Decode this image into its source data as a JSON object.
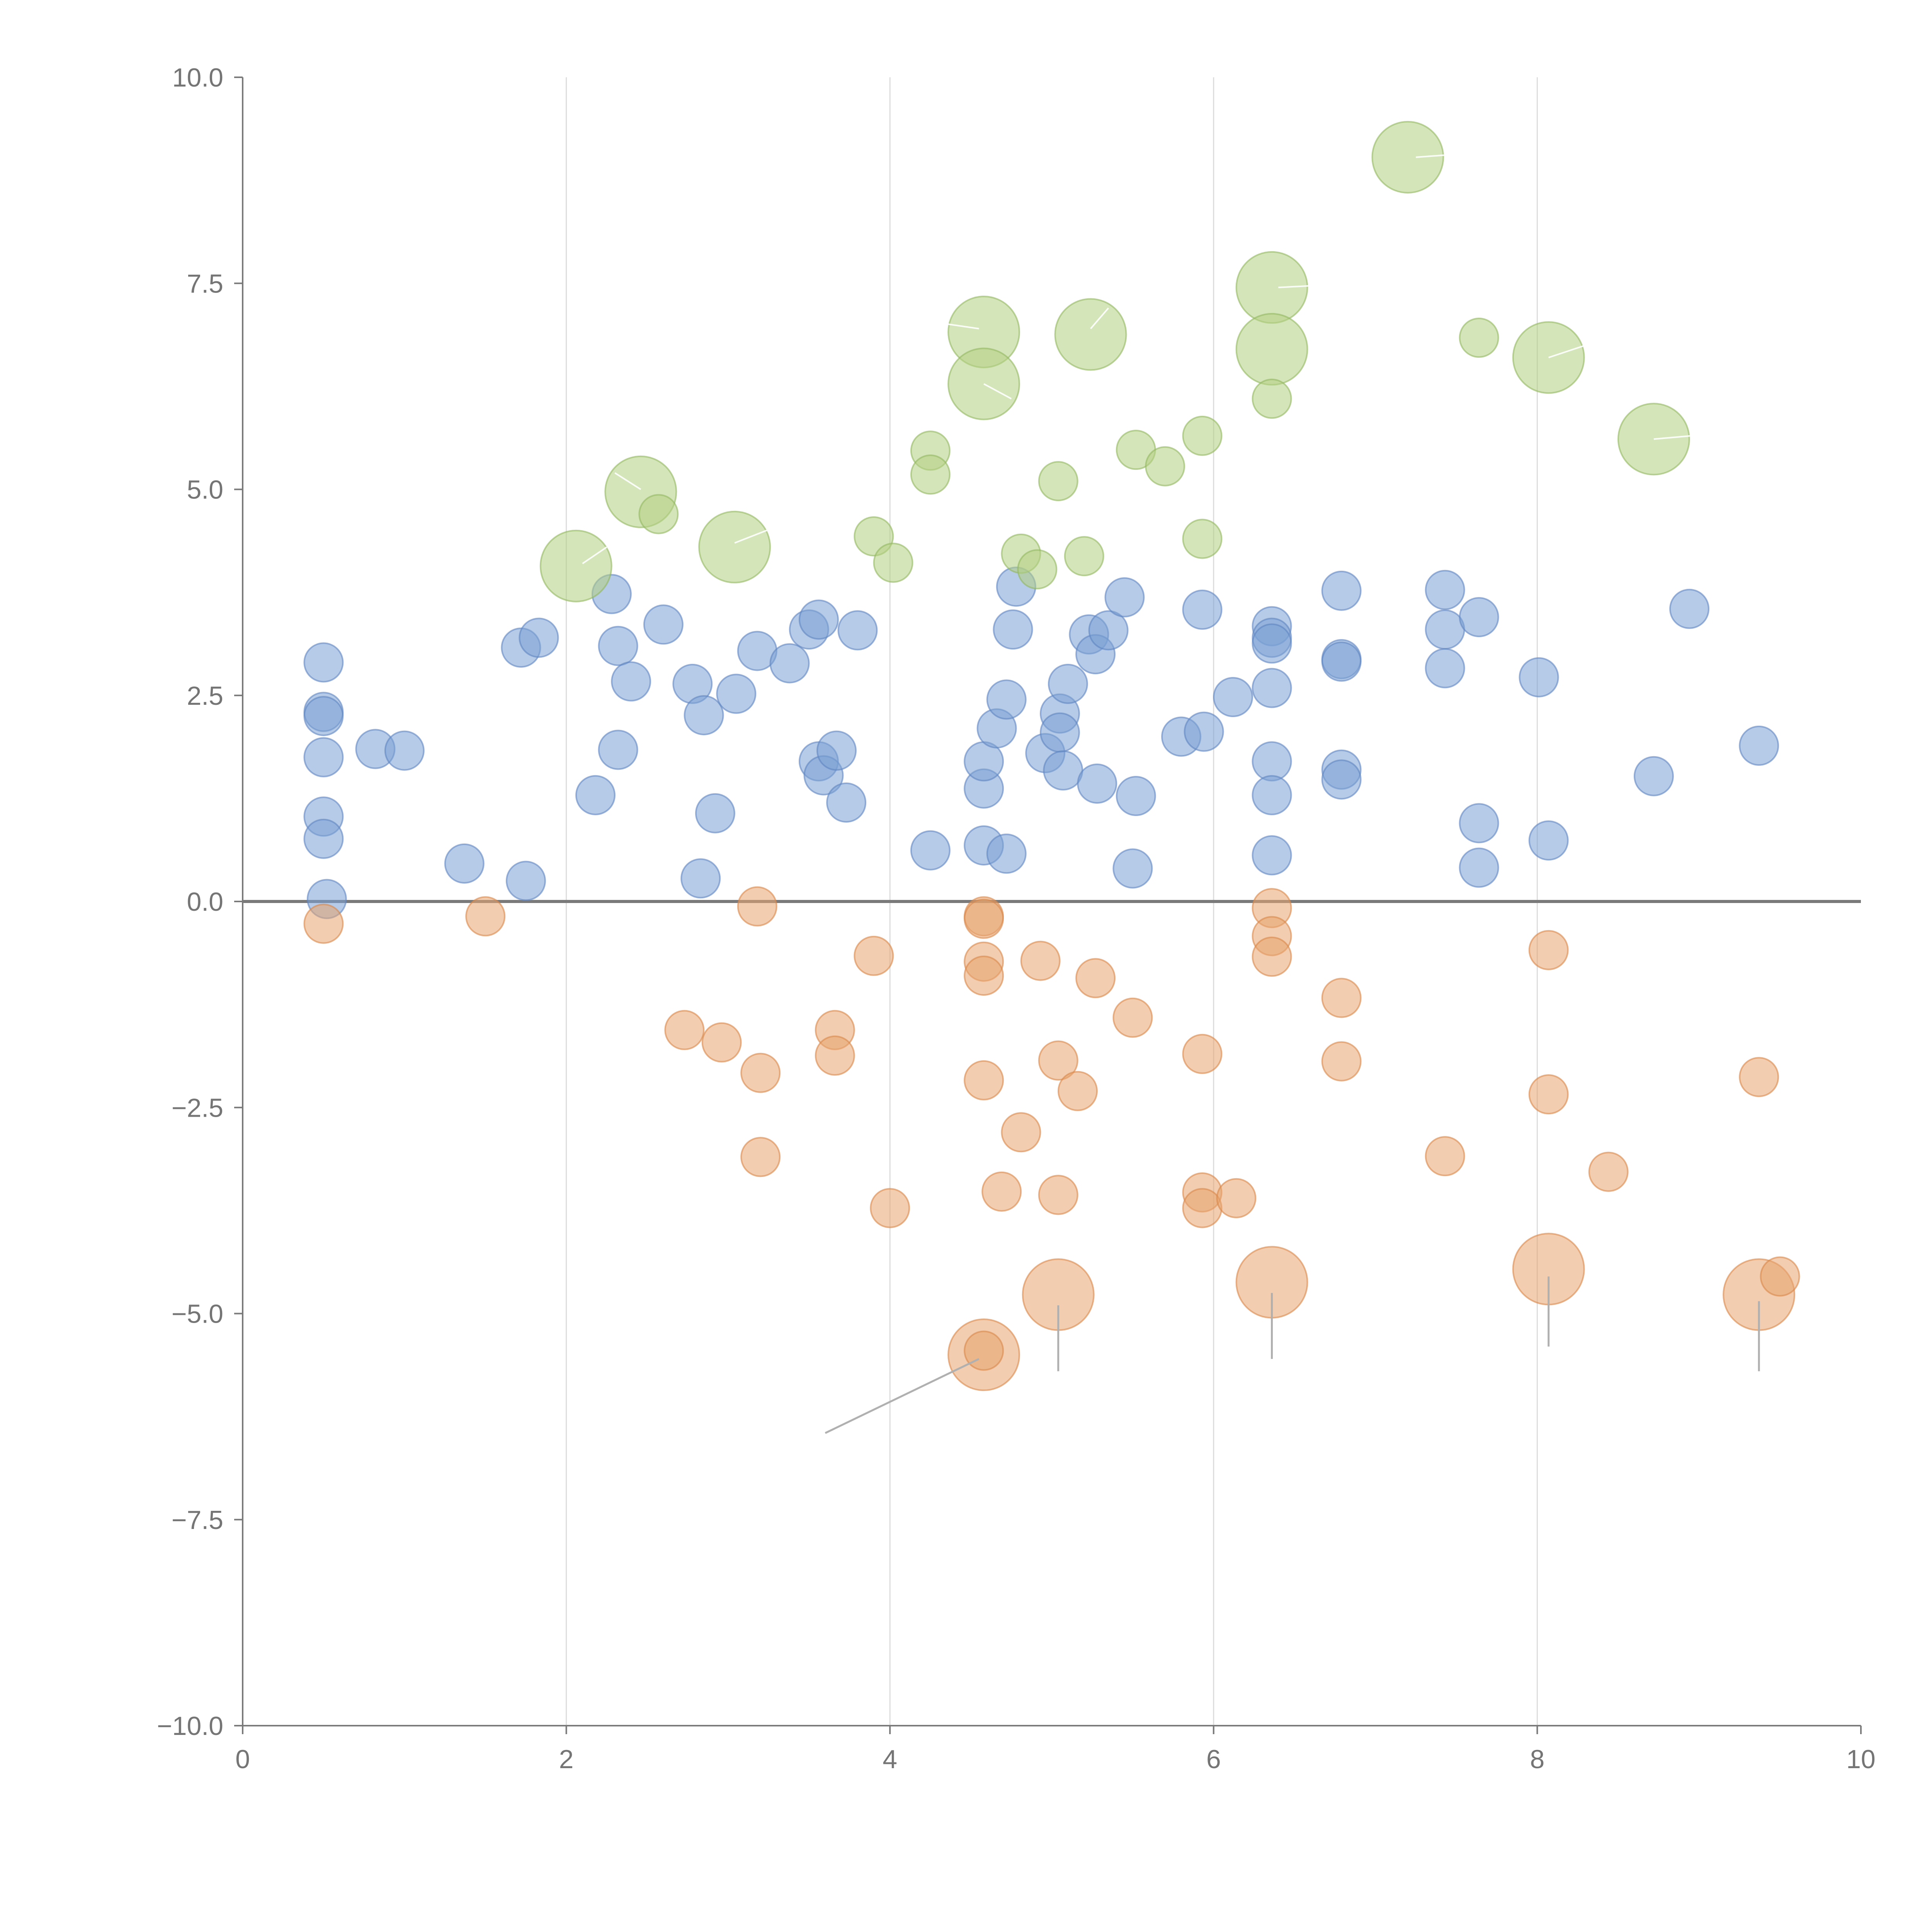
{
  "chart_data": {
    "type": "scatter",
    "subtype": "bubble",
    "title": "",
    "xlabel": "",
    "ylabel": "",
    "xlim": [
      0,
      10
    ],
    "ylim": [
      -10,
      10
    ],
    "grid": "vertical-major",
    "x_ticks": [
      "0",
      "2",
      "4",
      "6",
      "8",
      "10"
    ],
    "y_ticks": [
      "−10.0",
      "−7.5",
      "−5.0",
      "−2.5",
      "0.0",
      "2.5",
      "5.0",
      "7.5",
      "10.0"
    ],
    "x_tick_values": [
      0,
      2,
      4,
      6,
      8,
      10
    ],
    "y_tick_values": [
      -10,
      -7.5,
      -5,
      -2.5,
      0,
      2.5,
      5,
      7.5,
      10
    ],
    "reference_line_y": 0,
    "colors": {
      "blue_fill": "#7aa0d4",
      "blue_stroke": "#5f86c2",
      "orange_fill": "#e8a46e",
      "orange_stroke": "#d9874a",
      "green_fill": "#b3cf82",
      "green_stroke": "#93b861",
      "axis": "#7a7a7a",
      "grid": "#dcdcdc"
    },
    "size_scale_note": "small bubbles size 1, large bubbles size 3",
    "series": [
      {
        "name": "blue",
        "color": "#7aa0d4",
        "points": [
          {
            "x": 0.5,
            "y": 2.9,
            "s": 1
          },
          {
            "x": 0.5,
            "y": 2.3,
            "s": 1
          },
          {
            "x": 0.5,
            "y": 2.25,
            "s": 1
          },
          {
            "x": 0.5,
            "y": 1.75,
            "s": 1
          },
          {
            "x": 0.5,
            "y": 1.03,
            "s": 1
          },
          {
            "x": 0.5,
            "y": 0.76,
            "s": 1
          },
          {
            "x": 0.52,
            "y": 0.03,
            "s": 1
          },
          {
            "x": 0.82,
            "y": 1.85,
            "s": 1
          },
          {
            "x": 1.0,
            "y": 1.83,
            "s": 1
          },
          {
            "x": 1.37,
            "y": 0.46,
            "s": 1
          },
          {
            "x": 1.75,
            "y": 0.25,
            "s": 1
          },
          {
            "x": 1.72,
            "y": 3.08,
            "s": 1
          },
          {
            "x": 1.83,
            "y": 3.2,
            "s": 1
          },
          {
            "x": 2.18,
            "y": 1.29,
            "s": 1
          },
          {
            "x": 2.28,
            "y": 3.73,
            "s": 1
          },
          {
            "x": 2.32,
            "y": 3.1,
            "s": 1
          },
          {
            "x": 2.32,
            "y": 1.84,
            "s": 1
          },
          {
            "x": 2.4,
            "y": 2.67,
            "s": 1
          },
          {
            "x": 2.6,
            "y": 3.36,
            "s": 1
          },
          {
            "x": 2.78,
            "y": 2.64,
            "s": 1
          },
          {
            "x": 2.85,
            "y": 2.26,
            "s": 1
          },
          {
            "x": 2.83,
            "y": 0.28,
            "s": 1
          },
          {
            "x": 2.92,
            "y": 1.07,
            "s": 1
          },
          {
            "x": 3.05,
            "y": 2.52,
            "s": 1
          },
          {
            "x": 3.18,
            "y": 3.04,
            "s": 1
          },
          {
            "x": 3.38,
            "y": 2.89,
            "s": 1
          },
          {
            "x": 3.5,
            "y": 3.3,
            "s": 1
          },
          {
            "x": 3.56,
            "y": 3.42,
            "s": 1
          },
          {
            "x": 3.56,
            "y": 1.7,
            "s": 1
          },
          {
            "x": 3.59,
            "y": 1.53,
            "s": 1
          },
          {
            "x": 3.67,
            "y": 1.83,
            "s": 1
          },
          {
            "x": 3.73,
            "y": 1.2,
            "s": 1
          },
          {
            "x": 3.8,
            "y": 3.29,
            "s": 1
          },
          {
            "x": 4.25,
            "y": 0.62,
            "s": 1
          },
          {
            "x": 4.58,
            "y": 0.68,
            "s": 1
          },
          {
            "x": 4.58,
            "y": 1.37,
            "s": 1
          },
          {
            "x": 4.58,
            "y": 1.7,
            "s": 1
          },
          {
            "x": 4.66,
            "y": 2.1,
            "s": 1
          },
          {
            "x": 4.72,
            "y": 0.58,
            "s": 1
          },
          {
            "x": 4.72,
            "y": 2.45,
            "s": 1
          },
          {
            "x": 4.76,
            "y": 3.3,
            "s": 1
          },
          {
            "x": 4.78,
            "y": 3.82,
            "s": 1
          },
          {
            "x": 4.96,
            "y": 1.8,
            "s": 1
          },
          {
            "x": 5.05,
            "y": 2.28,
            "s": 1
          },
          {
            "x": 5.05,
            "y": 2.05,
            "s": 1
          },
          {
            "x": 5.07,
            "y": 1.59,
            "s": 1
          },
          {
            "x": 5.1,
            "y": 2.64,
            "s": 1
          },
          {
            "x": 5.23,
            "y": 3.24,
            "s": 1
          },
          {
            "x": 5.27,
            "y": 3.0,
            "s": 1
          },
          {
            "x": 5.28,
            "y": 1.43,
            "s": 1
          },
          {
            "x": 5.35,
            "y": 3.29,
            "s": 1
          },
          {
            "x": 5.45,
            "y": 3.69,
            "s": 1
          },
          {
            "x": 5.5,
            "y": 0.4,
            "s": 1
          },
          {
            "x": 5.52,
            "y": 1.28,
            "s": 1
          },
          {
            "x": 5.8,
            "y": 2.0,
            "s": 1
          },
          {
            "x": 5.93,
            "y": 3.54,
            "s": 1
          },
          {
            "x": 5.94,
            "y": 2.06,
            "s": 1
          },
          {
            "x": 6.12,
            "y": 2.48,
            "s": 1
          },
          {
            "x": 6.36,
            "y": 3.34,
            "s": 1
          },
          {
            "x": 6.36,
            "y": 3.2,
            "s": 1
          },
          {
            "x": 6.36,
            "y": 3.13,
            "s": 1
          },
          {
            "x": 6.36,
            "y": 2.59,
            "s": 1
          },
          {
            "x": 6.36,
            "y": 1.7,
            "s": 1
          },
          {
            "x": 6.36,
            "y": 1.29,
            "s": 1
          },
          {
            "x": 6.36,
            "y": 0.56,
            "s": 1
          },
          {
            "x": 6.79,
            "y": 3.77,
            "s": 1
          },
          {
            "x": 6.79,
            "y": 2.94,
            "s": 1
          },
          {
            "x": 6.79,
            "y": 2.91,
            "s": 1
          },
          {
            "x": 6.79,
            "y": 1.6,
            "s": 1
          },
          {
            "x": 6.79,
            "y": 1.48,
            "s": 1
          },
          {
            "x": 7.43,
            "y": 3.78,
            "s": 1
          },
          {
            "x": 7.43,
            "y": 3.3,
            "s": 1
          },
          {
            "x": 7.43,
            "y": 2.83,
            "s": 1
          },
          {
            "x": 7.64,
            "y": 3.45,
            "s": 1
          },
          {
            "x": 7.64,
            "y": 0.95,
            "s": 1
          },
          {
            "x": 7.64,
            "y": 0.41,
            "s": 1
          },
          {
            "x": 8.01,
            "y": 2.72,
            "s": 1
          },
          {
            "x": 8.07,
            "y": 0.74,
            "s": 1
          },
          {
            "x": 8.72,
            "y": 1.52,
            "s": 1
          },
          {
            "x": 8.94,
            "y": 3.55,
            "s": 1
          },
          {
            "x": 9.37,
            "y": 1.89,
            "s": 1
          }
        ]
      },
      {
        "name": "orange",
        "color": "#e8a46e",
        "points": [
          {
            "x": 0.5,
            "y": -0.27,
            "s": 1
          },
          {
            "x": 1.5,
            "y": -0.18,
            "s": 1
          },
          {
            "x": 2.73,
            "y": -1.56,
            "s": 1
          },
          {
            "x": 2.96,
            "y": -1.71,
            "s": 1
          },
          {
            "x": 3.18,
            "y": -0.06,
            "s": 1
          },
          {
            "x": 3.2,
            "y": -2.08,
            "s": 1
          },
          {
            "x": 3.2,
            "y": -3.1,
            "s": 1
          },
          {
            "x": 3.66,
            "y": -1.56,
            "s": 1
          },
          {
            "x": 3.66,
            "y": -1.87,
            "s": 1
          },
          {
            "x": 3.9,
            "y": -0.66,
            "s": 1
          },
          {
            "x": 4.0,
            "y": -3.72,
            "s": 1
          },
          {
            "x": 4.58,
            "y": -0.18,
            "s": 1
          },
          {
            "x": 4.58,
            "y": -0.21,
            "s": 1
          },
          {
            "x": 4.58,
            "y": -0.73,
            "s": 1
          },
          {
            "x": 4.58,
            "y": -0.9,
            "s": 1
          },
          {
            "x": 4.58,
            "y": -2.17,
            "s": 1
          },
          {
            "x": 4.69,
            "y": -3.52,
            "s": 1
          },
          {
            "x": 4.81,
            "y": -2.8,
            "s": 1
          },
          {
            "x": 4.93,
            "y": -0.72,
            "s": 1
          },
          {
            "x": 5.04,
            "y": -1.93,
            "s": 1
          },
          {
            "x": 5.04,
            "y": -3.56,
            "s": 1
          },
          {
            "x": 5.16,
            "y": -2.3,
            "s": 1
          },
          {
            "x": 5.27,
            "y": -0.93,
            "s": 1
          },
          {
            "x": 5.5,
            "y": -1.41,
            "s": 1
          },
          {
            "x": 5.93,
            "y": -1.85,
            "s": 1
          },
          {
            "x": 5.93,
            "y": -3.53,
            "s": 1
          },
          {
            "x": 5.93,
            "y": -3.72,
            "s": 1
          },
          {
            "x": 6.14,
            "y": -3.6,
            "s": 1
          },
          {
            "x": 6.36,
            "y": -0.08,
            "s": 1
          },
          {
            "x": 6.36,
            "y": -0.42,
            "s": 1
          },
          {
            "x": 6.36,
            "y": -0.67,
            "s": 1
          },
          {
            "x": 6.79,
            "y": -1.17,
            "s": 1
          },
          {
            "x": 6.79,
            "y": -1.94,
            "s": 1
          },
          {
            "x": 7.43,
            "y": -3.09,
            "s": 1
          },
          {
            "x": 8.07,
            "y": -0.59,
            "s": 1
          },
          {
            "x": 8.07,
            "y": -2.34,
            "s": 1
          },
          {
            "x": 8.44,
            "y": -3.28,
            "s": 1
          },
          {
            "x": 9.37,
            "y": -2.13,
            "s": 1
          },
          {
            "x": 9.5,
            "y": -4.55,
            "s": 1
          },
          {
            "x": 4.58,
            "y": -5.5,
            "s": 3
          },
          {
            "x": 4.58,
            "y": -5.45,
            "s": 1
          },
          {
            "x": 5.04,
            "y": -4.77,
            "s": 3
          },
          {
            "x": 6.36,
            "y": -4.62,
            "s": 3
          },
          {
            "x": 8.07,
            "y": -4.46,
            "s": 3
          },
          {
            "x": 9.37,
            "y": -4.77,
            "s": 3
          }
        ]
      },
      {
        "name": "green",
        "color": "#b3cf82",
        "points": [
          {
            "x": 2.57,
            "y": 4.7,
            "s": 1
          },
          {
            "x": 3.9,
            "y": 4.43,
            "s": 1
          },
          {
            "x": 4.02,
            "y": 4.11,
            "s": 1
          },
          {
            "x": 4.25,
            "y": 5.47,
            "s": 1
          },
          {
            "x": 4.25,
            "y": 5.18,
            "s": 1
          },
          {
            "x": 4.81,
            "y": 4.22,
            "s": 1
          },
          {
            "x": 4.91,
            "y": 4.03,
            "s": 1
          },
          {
            "x": 5.04,
            "y": 5.1,
            "s": 1
          },
          {
            "x": 5.2,
            "y": 4.19,
            "s": 1
          },
          {
            "x": 5.52,
            "y": 5.48,
            "s": 1
          },
          {
            "x": 5.7,
            "y": 5.28,
            "s": 1
          },
          {
            "x": 5.93,
            "y": 5.65,
            "s": 1
          },
          {
            "x": 5.93,
            "y": 4.4,
            "s": 1
          },
          {
            "x": 6.36,
            "y": 6.1,
            "s": 1
          },
          {
            "x": 7.64,
            "y": 6.84,
            "s": 1
          },
          {
            "x": 2.06,
            "y": 4.07,
            "s": 3
          },
          {
            "x": 2.46,
            "y": 4.97,
            "s": 3
          },
          {
            "x": 3.04,
            "y": 4.3,
            "s": 3
          },
          {
            "x": 4.58,
            "y": 6.91,
            "s": 3
          },
          {
            "x": 4.58,
            "y": 6.28,
            "s": 3
          },
          {
            "x": 5.24,
            "y": 6.88,
            "s": 3
          },
          {
            "x": 6.36,
            "y": 7.45,
            "s": 3
          },
          {
            "x": 6.36,
            "y": 6.7,
            "s": 3
          },
          {
            "x": 7.2,
            "y": 9.03,
            "s": 3
          },
          {
            "x": 8.07,
            "y": 6.6,
            "s": 3
          },
          {
            "x": 8.72,
            "y": 5.61,
            "s": 3
          }
        ]
      }
    ]
  }
}
